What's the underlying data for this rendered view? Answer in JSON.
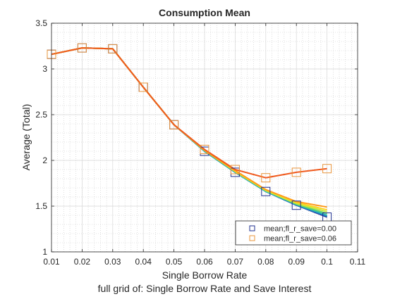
{
  "figure": {
    "title": "Consumption Mean",
    "xlabel": "Single Borrow Rate",
    "ylabel": "Average (Total)",
    "subtitle": "full grid of: Single Borrow Rate and Save Interest"
  },
  "chart_data": {
    "type": "line",
    "title": "Consumption Mean",
    "xlabel": "Single Borrow Rate",
    "ylabel": "Average (Total)",
    "xlim": [
      0.01,
      0.11
    ],
    "ylim": [
      1,
      3.5
    ],
    "xticks": [
      0.01,
      0.02,
      0.03,
      0.04,
      0.05,
      0.06,
      0.07,
      0.08,
      0.09,
      0.1,
      0.11
    ],
    "xticklabels": [
      "0.01",
      "0.02",
      "0.03",
      "0.04",
      "0.05",
      "0.06",
      "0.07",
      "0.08",
      "0.09",
      "0.1",
      "0.11"
    ],
    "yticks": [
      1,
      1.5,
      2,
      2.5,
      3,
      3.5
    ],
    "yticklabels": [
      "1",
      "1.5",
      "2",
      "2.5",
      "3",
      "3.5"
    ],
    "grid": true,
    "minor_grid": true,
    "legend_position": "bottom-right",
    "x": [
      0.01,
      0.02,
      0.03,
      0.04,
      0.05,
      0.06,
      0.07,
      0.08,
      0.09,
      0.1
    ],
    "series": [
      {
        "name": "mean;fl_r_save=0.00",
        "color": "#1f2f8f",
        "marker": "square",
        "legend": true,
        "values": [
          3.16,
          3.23,
          3.22,
          2.8,
          2.39,
          2.1,
          1.87,
          1.66,
          1.51,
          1.38
        ]
      },
      {
        "color": "#1e78c8",
        "values": [
          3.16,
          3.23,
          3.22,
          2.8,
          2.39,
          2.1,
          1.87,
          1.66,
          1.51,
          1.39
        ]
      },
      {
        "color": "#2ab7b0",
        "values": [
          3.16,
          3.23,
          3.22,
          2.8,
          2.39,
          2.1,
          1.87,
          1.66,
          1.52,
          1.4
        ]
      },
      {
        "color": "#68d46c",
        "values": [
          3.16,
          3.23,
          3.22,
          2.8,
          2.39,
          2.11,
          1.88,
          1.67,
          1.52,
          1.42
        ]
      },
      {
        "color": "#c9e83a",
        "values": [
          3.16,
          3.23,
          3.22,
          2.8,
          2.39,
          2.11,
          1.88,
          1.67,
          1.53,
          1.44
        ]
      },
      {
        "color": "#ffd21e",
        "values": [
          3.16,
          3.23,
          3.22,
          2.8,
          2.39,
          2.11,
          1.88,
          1.68,
          1.54,
          1.46
        ]
      },
      {
        "color": "#ff9a1a",
        "values": [
          3.16,
          3.23,
          3.22,
          2.8,
          2.39,
          2.11,
          1.89,
          1.68,
          1.55,
          1.49
        ]
      },
      {
        "name": "mean;fl_r_save=0.06",
        "color": "#f05a1e",
        "marker": "square",
        "legend": true,
        "values": [
          3.16,
          3.23,
          3.22,
          2.8,
          2.39,
          2.12,
          1.9,
          1.81,
          1.87,
          1.91
        ]
      }
    ],
    "marker_color": "#e8943a"
  }
}
